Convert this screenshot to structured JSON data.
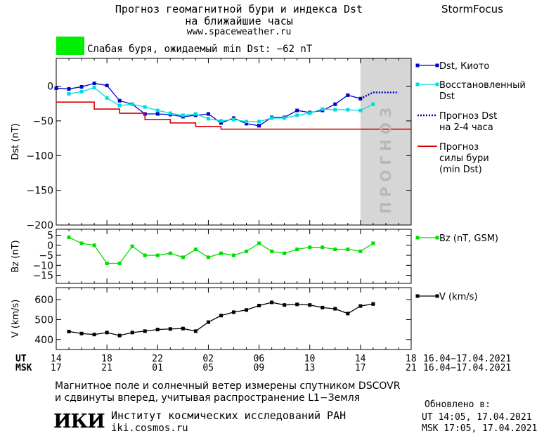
{
  "header": {
    "title_line1": "Прогноз геомагнитной бури и индекса Dst",
    "title_line2": "на ближайшие часы",
    "url": "www.spaceweather.ru",
    "brand": "StormFocus",
    "storm_color": "#00ee00",
    "storm_text": "Слабая буря, ожидаемый min Dst: −62 nT"
  },
  "forecast_label": "ПРОГНОЗ",
  "time_axis": {
    "ut_label": "UT",
    "msk_label": "MSK",
    "ut_ticks": [
      "14",
      "18",
      "22",
      "02",
      "06",
      "10",
      "14",
      "18"
    ],
    "msk_ticks": [
      "17",
      "21",
      "01",
      "05",
      "09",
      "13",
      "17",
      "21"
    ],
    "ut_range": "16.04−17.04.2021",
    "msk_range": "16.04−17.04.2021"
  },
  "footer": {
    "note_line1": "Магнитное поле и солнечный ветер измерены спутником DSCOVR",
    "note_line2": "и сдвинуты вперед, учитывая распространение L1−Земля",
    "logo": "ИКИ",
    "institute": "Институт космических исследований РАН",
    "site": "iki.cosmos.ru",
    "updated_label": "Обновлено в:",
    "updated_ut": "UT  14:05, 17.04.2021",
    "updated_msk": "MSK 17:05, 17.04.2021"
  },
  "chart_data": [
    {
      "type": "line",
      "ylabel": "Dst (nT)",
      "ylim": [
        -200,
        40
      ],
      "yticks": [
        "0",
        "−50",
        "−100",
        "−150",
        "−200"
      ],
      "ytick_values": [
        0,
        -50,
        -100,
        -150,
        -200
      ],
      "xlim": [
        0,
        28
      ],
      "forecast_region": [
        24,
        28
      ],
      "series": [
        {
          "name": "Dst, Киото",
          "color": "#0000cc",
          "x": [
            0,
            1,
            2,
            3,
            4,
            5,
            6,
            7,
            8,
            9,
            10,
            11,
            12,
            13,
            14,
            15,
            16,
            17,
            18,
            19,
            20,
            21,
            22,
            23,
            24
          ],
          "y": [
            -3,
            -4,
            -1,
            4,
            1,
            -21,
            -26,
            -40,
            -40,
            -41,
            -44,
            -42,
            -40,
            -53,
            -46,
            -54,
            -57,
            -45,
            -45,
            -35,
            -38,
            -35,
            -26,
            -13,
            -18
          ]
        },
        {
          "name": "Восстановленный Dst",
          "color": "#00dddd",
          "x": [
            1,
            2,
            3,
            4,
            5,
            6,
            7,
            8,
            9,
            10,
            11,
            12,
            13,
            14,
            15,
            16,
            17,
            18,
            19,
            20,
            21,
            22,
            23,
            24,
            25
          ],
          "y": [
            -11,
            -8,
            -2,
            -17,
            -28,
            -26,
            -30,
            -35,
            -39,
            -42,
            -40,
            -47,
            -50,
            -48,
            -51,
            -51,
            -46,
            -46,
            -42,
            -39,
            -33,
            -34,
            -34,
            -35,
            -26
          ]
        },
        {
          "name": "Прогноз Dst на 2-4 часа",
          "color": "#0000cc",
          "dotted": true,
          "x": [
            24,
            25,
            26,
            27
          ],
          "y": [
            -18,
            -9,
            -9,
            -9
          ]
        },
        {
          "name": "Прогноз силы бури (min Dst)",
          "color": "#dd0000",
          "step": true,
          "x": [
            0,
            2,
            3,
            5,
            7,
            9,
            11,
            13,
            28
          ],
          "y": [
            -23,
            -23,
            -33,
            -39,
            -48,
            -53,
            -58,
            -62,
            -62
          ]
        }
      ]
    },
    {
      "type": "line",
      "ylabel": "Bz (nT)",
      "ylim": [
        -19,
        8
      ],
      "yticks": [
        "5",
        "0",
        "−5",
        "−10",
        "−15"
      ],
      "ytick_values": [
        5,
        0,
        -5,
        -10,
        -15
      ],
      "xlim": [
        0,
        28
      ],
      "series": [
        {
          "name": "Bz (nT, GSM)",
          "color": "#00dd00",
          "x": [
            1,
            2,
            3,
            4,
            5,
            6,
            7,
            8,
            9,
            10,
            11,
            12,
            13,
            14,
            15,
            16,
            17,
            18,
            19,
            20,
            21,
            22,
            23,
            24,
            25
          ],
          "y": [
            4,
            1,
            0,
            -9,
            -9,
            -0.5,
            -5,
            -5,
            -4,
            -6,
            -2,
            -6,
            -4,
            -5,
            -3,
            1,
            -3,
            -4,
            -2,
            -1,
            -1,
            -2,
            -2,
            -3,
            1
          ]
        }
      ]
    },
    {
      "type": "line",
      "ylabel": "V (km/s)",
      "ylim": [
        350,
        660
      ],
      "yticks": [
        "600",
        "500",
        "400"
      ],
      "ytick_values": [
        600,
        500,
        400
      ],
      "xlim": [
        0,
        28
      ],
      "series": [
        {
          "name": "V (km/s)",
          "color": "#000000",
          "x": [
            1,
            2,
            3,
            4,
            5,
            6,
            7,
            8,
            9,
            10,
            11,
            12,
            13,
            14,
            15,
            16,
            17,
            18,
            19,
            20,
            21,
            22,
            23,
            24,
            25
          ],
          "y": [
            440,
            430,
            425,
            435,
            420,
            435,
            442,
            450,
            453,
            455,
            442,
            487,
            520,
            537,
            548,
            570,
            586,
            573,
            576,
            573,
            560,
            554,
            530,
            568,
            578
          ]
        }
      ]
    }
  ]
}
